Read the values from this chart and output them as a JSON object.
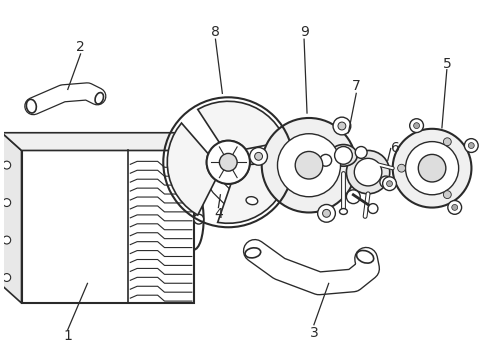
{
  "background_color": "#ffffff",
  "line_color": "#2a2a2a",
  "label_color": "#2a2a2a",
  "figsize": [
    4.9,
    3.6
  ],
  "dpi": 100,
  "label_fontsize": 10,
  "line_width": 1.0
}
